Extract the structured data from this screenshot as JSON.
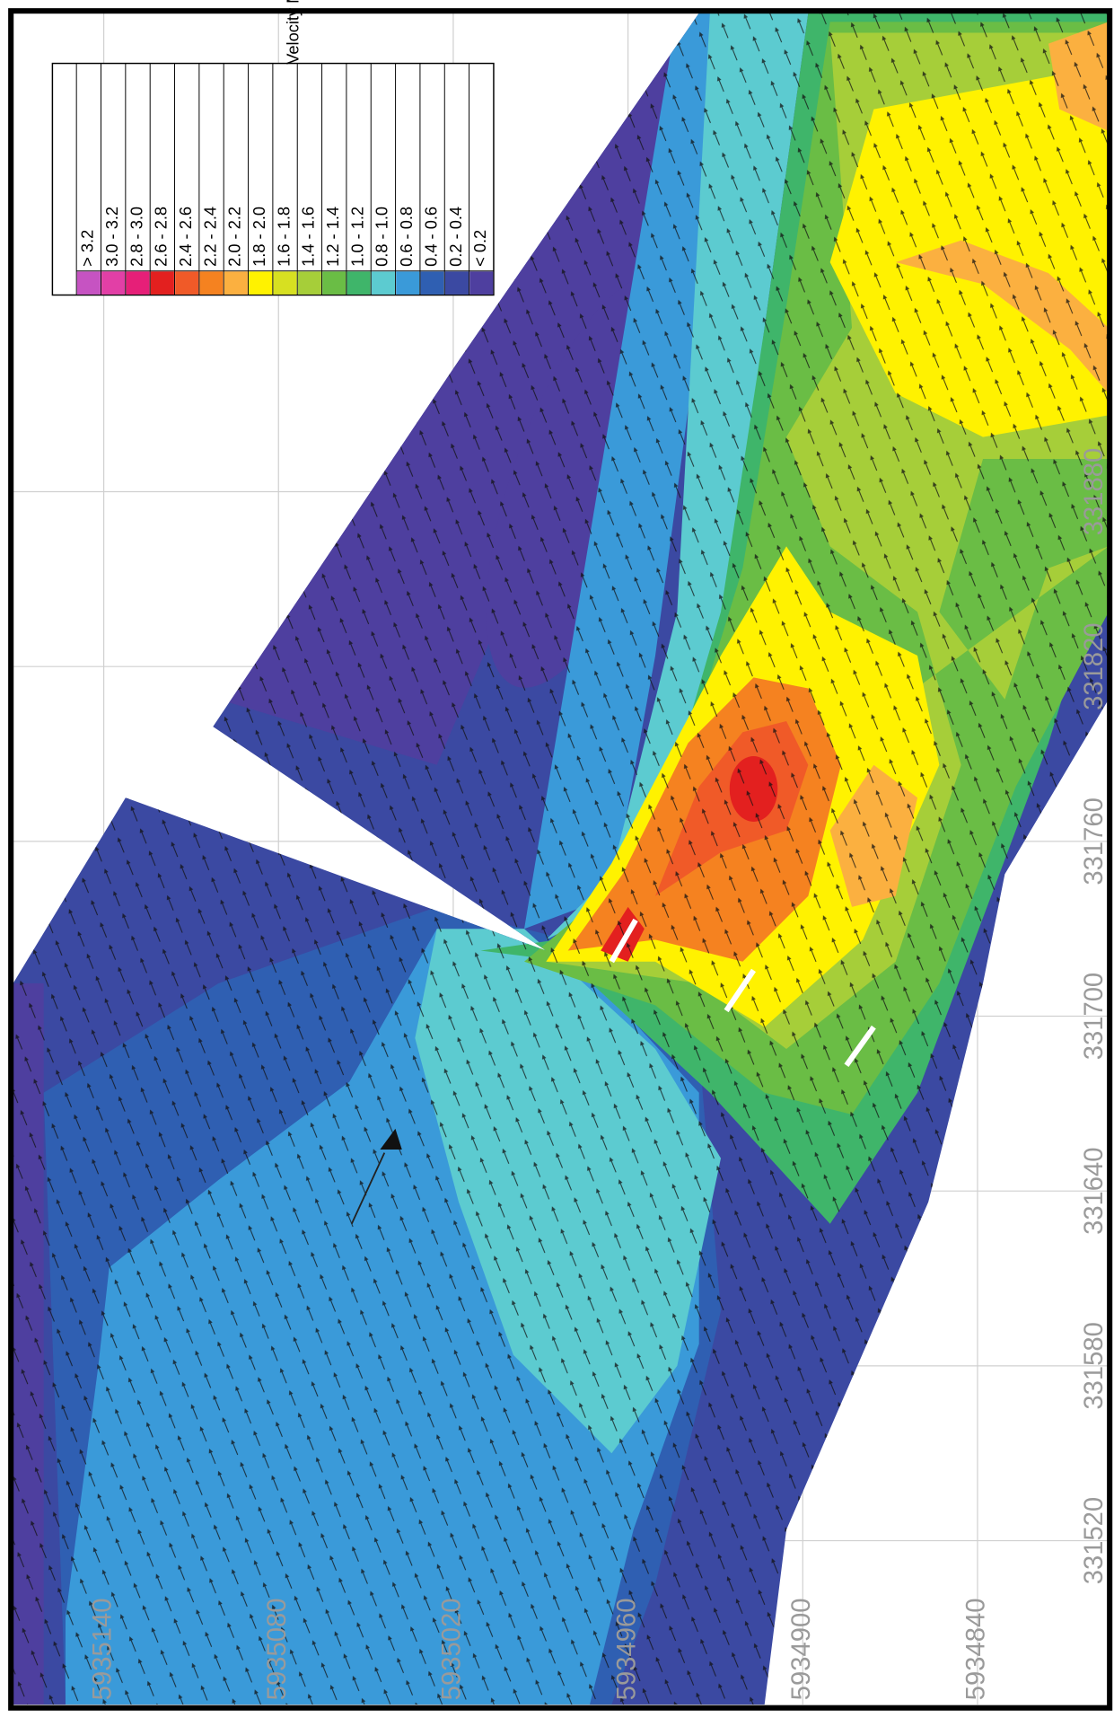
{
  "legend": {
    "title": "Velocity Magnitude (m/s)",
    "entries": [
      {
        "label": "> 3.2",
        "color": "#c653c2"
      },
      {
        "label": "3.0 - 3.2",
        "color": "#e23fa6"
      },
      {
        "label": "2.8 - 3.0",
        "color": "#e61f78"
      },
      {
        "label": "2.6 - 2.8",
        "color": "#e3201f"
      },
      {
        "label": "2.4 - 2.6",
        "color": "#f05a28"
      },
      {
        "label": "2.2 - 2.4",
        "color": "#f58220"
      },
      {
        "label": "2.0 - 2.2",
        "color": "#fbb040"
      },
      {
        "label": "1.8 - 2.0",
        "color": "#fff200"
      },
      {
        "label": "1.6 - 1.8",
        "color": "#d7e021"
      },
      {
        "label": "1.4 - 1.6",
        "color": "#a6ce39"
      },
      {
        "label": "1.2 - 1.4",
        "color": "#6abd45"
      },
      {
        "label": "1.0 - 1.2",
        "color": "#3fb56a"
      },
      {
        "label": "0.8 - 1.0",
        "color": "#5ccbd0"
      },
      {
        "label": "0.6 - 0.8",
        "color": "#3a9ad9"
      },
      {
        "label": "0.4 - 0.6",
        "color": "#2f5fb2"
      },
      {
        "label": "0.2 - 0.4",
        "color": "#3b49a2"
      },
      {
        "label": "< 0.2",
        "color": "#4e3f9f"
      }
    ]
  },
  "axes": {
    "northing_labels": [
      "5935140",
      "5935080",
      "5935020",
      "5934960",
      "5934900",
      "5934840"
    ],
    "easting_labels": [
      "331520",
      "331580",
      "331640",
      "331700",
      "331760",
      "331820",
      "331880"
    ]
  }
}
